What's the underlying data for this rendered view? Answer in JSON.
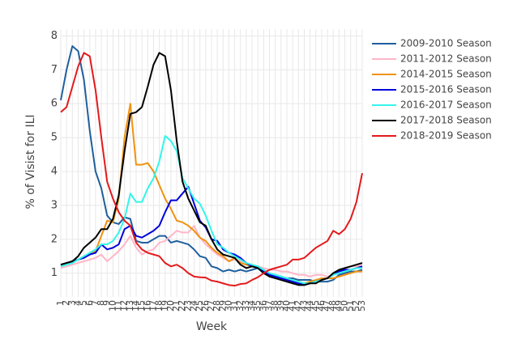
{
  "chart_data": {
    "type": "line",
    "xlabel": "Week",
    "ylabel": "% of Visist for ILI",
    "categories": [
      1,
      2,
      3,
      4,
      5,
      6,
      7,
      8,
      9,
      10,
      11,
      12,
      13,
      14,
      15,
      16,
      17,
      18,
      19,
      20,
      21,
      22,
      23,
      24,
      25,
      26,
      27,
      28,
      29,
      30,
      31,
      32,
      33,
      34,
      35,
      36,
      37,
      38,
      39,
      40,
      41,
      42,
      43,
      44,
      45,
      46,
      47,
      48,
      49,
      50,
      51,
      52,
      53
    ],
    "ylim": [
      0.3,
      8.2
    ],
    "yticks": [
      1,
      2,
      3,
      4,
      5,
      6,
      7,
      8
    ],
    "grid": true,
    "series": [
      {
        "name": "2009-2010 Season",
        "color": "#1f5f9e",
        "values": [
          6.1,
          7.0,
          7.7,
          7.55,
          6.7,
          5.2,
          4.0,
          3.5,
          2.7,
          2.5,
          2.45,
          2.65,
          2.6,
          1.95,
          1.9,
          1.9,
          2.0,
          2.1,
          2.1,
          1.9,
          1.95,
          1.9,
          1.85,
          1.7,
          1.5,
          1.45,
          1.2,
          1.15,
          1.05,
          1.1,
          1.05,
          1.1,
          1.05,
          1.1,
          1.15,
          1.0,
          0.95,
          0.95,
          0.9,
          0.85,
          0.85,
          0.8,
          0.8,
          0.8,
          0.75,
          0.75,
          0.75,
          0.8,
          0.95,
          1.0,
          1.05,
          1.05,
          1.1
        ]
      },
      {
        "name": "2011-2012 Season",
        "color": "#ffb6c8",
        "values": [
          1.15,
          1.2,
          1.25,
          1.3,
          1.35,
          1.4,
          1.45,
          1.55,
          1.35,
          1.5,
          1.65,
          1.85,
          2.1,
          1.75,
          1.55,
          1.65,
          1.7,
          1.9,
          1.95,
          2.1,
          2.25,
          2.2,
          2.2,
          2.4,
          2.05,
          1.85,
          1.7,
          1.55,
          1.45,
          1.35,
          1.4,
          1.35,
          1.3,
          1.25,
          1.2,
          1.15,
          1.1,
          1.1,
          1.05,
          1.05,
          1.0,
          0.95,
          0.95,
          0.9,
          0.95,
          0.95,
          0.9,
          0.95,
          1.05,
          1.15,
          1.2,
          1.2,
          1.25
        ]
      },
      {
        "name": "2014-2015 Season",
        "color": "#f0920f",
        "values": [
          1.25,
          1.3,
          1.35,
          1.4,
          1.5,
          1.55,
          1.65,
          2.1,
          2.55,
          2.5,
          3.2,
          5.0,
          6.0,
          4.2,
          4.2,
          4.25,
          4.0,
          3.6,
          3.2,
          2.9,
          2.55,
          2.5,
          2.4,
          2.25,
          2.05,
          1.95,
          1.75,
          1.6,
          1.5,
          1.35,
          1.45,
          1.3,
          1.25,
          1.2,
          1.15,
          1.05,
          0.95,
          0.9,
          0.85,
          0.8,
          0.8,
          0.75,
          0.7,
          0.75,
          0.8,
          0.85,
          0.85,
          0.85,
          0.9,
          0.95,
          1.0,
          1.05,
          1.05
        ]
      },
      {
        "name": "2015-2016 Season",
        "color": "#0000dd",
        "values": [
          1.25,
          1.3,
          1.35,
          1.4,
          1.45,
          1.55,
          1.6,
          1.85,
          1.7,
          1.75,
          1.85,
          2.3,
          2.4,
          2.1,
          2.05,
          2.15,
          2.25,
          2.4,
          2.8,
          3.15,
          3.15,
          3.35,
          3.55,
          3.05,
          2.55,
          2.35,
          2.0,
          1.95,
          1.7,
          1.6,
          1.55,
          1.45,
          1.3,
          1.2,
          1.2,
          1.05,
          0.95,
          0.9,
          0.85,
          0.8,
          0.75,
          0.7,
          0.65,
          0.7,
          0.75,
          0.8,
          0.85,
          0.95,
          1.05,
          1.1,
          1.1,
          1.15,
          1.2
        ]
      },
      {
        "name": "2016-2017 Season",
        "color": "#33f5ea",
        "values": [
          1.2,
          1.25,
          1.3,
          1.4,
          1.5,
          1.6,
          1.7,
          1.85,
          1.85,
          1.95,
          2.2,
          2.6,
          3.35,
          3.1,
          3.1,
          3.5,
          3.8,
          4.3,
          5.05,
          4.9,
          4.6,
          3.8,
          3.5,
          3.2,
          3.05,
          2.7,
          2.25,
          1.85,
          1.75,
          1.6,
          1.5,
          1.4,
          1.3,
          1.25,
          1.2,
          1.1,
          1.0,
          0.95,
          0.9,
          0.85,
          0.8,
          0.75,
          0.7,
          0.7,
          0.75,
          0.8,
          0.85,
          0.95,
          1.0,
          1.05,
          1.1,
          1.15,
          1.15
        ]
      },
      {
        "name": "2017-2018 Season",
        "color": "#000000",
        "values": [
          1.25,
          1.3,
          1.35,
          1.5,
          1.75,
          1.9,
          2.05,
          2.3,
          2.3,
          2.6,
          3.3,
          4.6,
          5.7,
          5.75,
          5.9,
          6.5,
          7.15,
          7.5,
          7.4,
          6.4,
          4.9,
          3.7,
          3.2,
          2.85,
          2.5,
          2.4,
          2.0,
          1.7,
          1.55,
          1.5,
          1.45,
          1.25,
          1.15,
          1.2,
          1.15,
          1.0,
          0.9,
          0.85,
          0.8,
          0.75,
          0.7,
          0.65,
          0.65,
          0.7,
          0.7,
          0.8,
          0.85,
          1.0,
          1.1,
          1.15,
          1.2,
          1.25,
          1.3
        ]
      },
      {
        "name": "2018-2019 Season",
        "color": "#e41a1c",
        "values": [
          5.75,
          5.9,
          6.5,
          7.1,
          7.5,
          7.4,
          6.4,
          5.0,
          3.7,
          3.2,
          2.8,
          2.55,
          2.4,
          1.9,
          1.7,
          1.6,
          1.55,
          1.5,
          1.3,
          1.2,
          1.25,
          1.15,
          1.0,
          0.9,
          0.88,
          0.87,
          0.78,
          0.75,
          0.7,
          0.65,
          0.63,
          0.68,
          0.7,
          0.8,
          0.88,
          1.0,
          1.1,
          1.15,
          1.2,
          1.25,
          1.4,
          1.4,
          1.45,
          1.6,
          1.75,
          1.85,
          1.95,
          2.25,
          2.15,
          2.3,
          2.6,
          3.1,
          3.95
        ]
      }
    ]
  }
}
